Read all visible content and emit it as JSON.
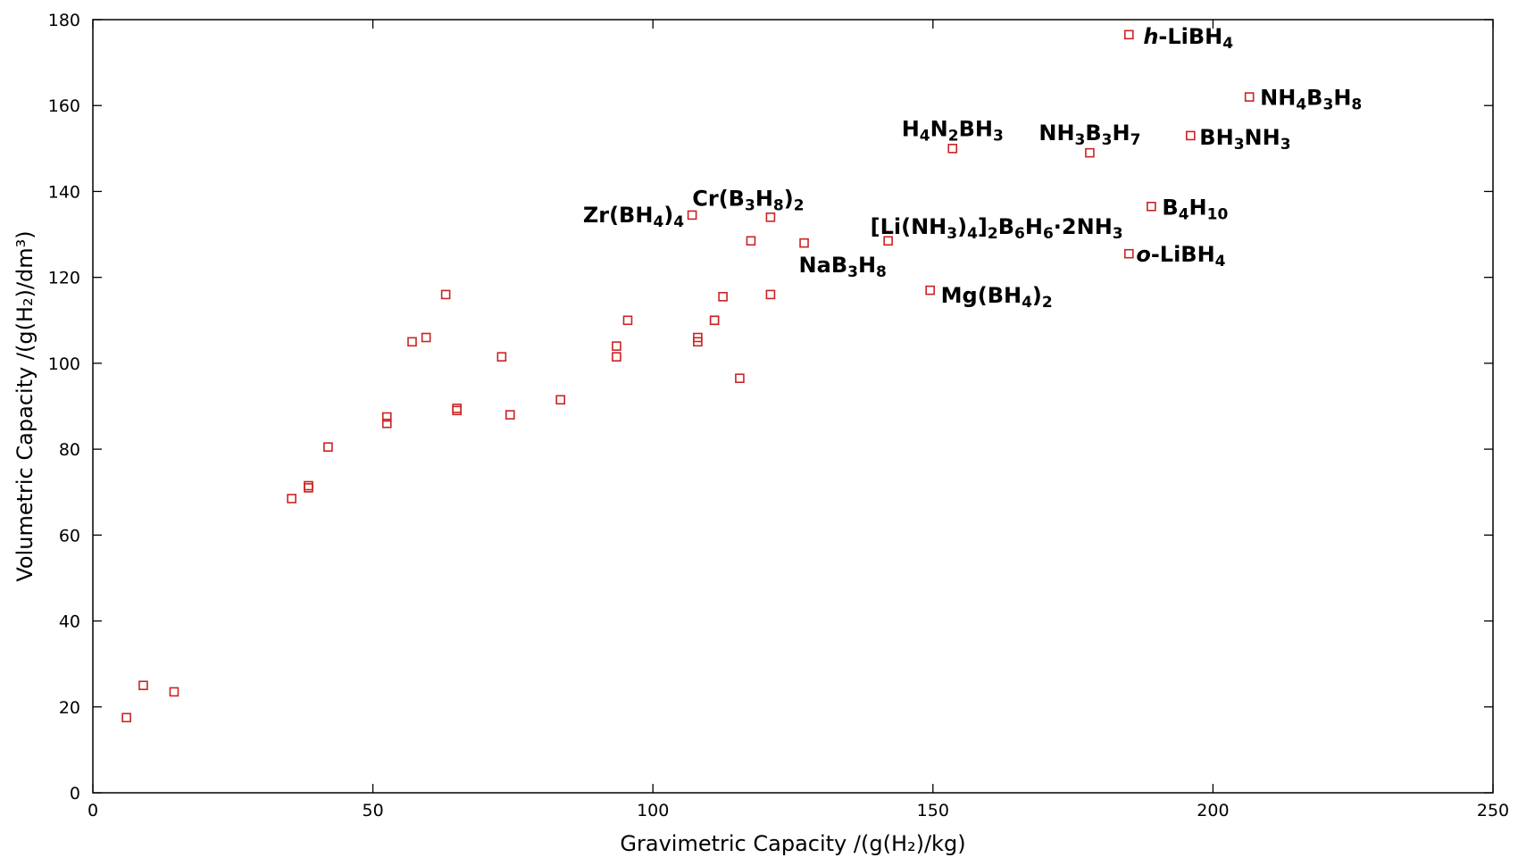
{
  "chart_data": {
    "type": "scatter",
    "xlabel": "Gravimetric Capacity /(g(H₂)/kg)",
    "ylabel": "Volumetric Capacity /(g(H₂)/dm³)",
    "xlim": [
      0,
      250
    ],
    "ylim": [
      0,
      180
    ],
    "x_ticks": [
      0,
      50,
      100,
      150,
      200,
      250
    ],
    "y_ticks": [
      0,
      20,
      40,
      60,
      80,
      100,
      120,
      140,
      160,
      180
    ],
    "grid": false,
    "marker": "open-square",
    "marker_color": "#cc2222",
    "points": [
      {
        "x": 6,
        "y": 17.5
      },
      {
        "x": 9,
        "y": 25
      },
      {
        "x": 14.5,
        "y": 23.5
      },
      {
        "x": 35.5,
        "y": 68.5
      },
      {
        "x": 38.5,
        "y": 71
      },
      {
        "x": 38.5,
        "y": 71.5
      },
      {
        "x": 42,
        "y": 80.5
      },
      {
        "x": 52.5,
        "y": 86
      },
      {
        "x": 52.5,
        "y": 87.5
      },
      {
        "x": 57,
        "y": 105
      },
      {
        "x": 59.5,
        "y": 106
      },
      {
        "x": 63,
        "y": 116
      },
      {
        "x": 65,
        "y": 89.5
      },
      {
        "x": 65,
        "y": 89
      },
      {
        "x": 73,
        "y": 101.5
      },
      {
        "x": 74.5,
        "y": 88
      },
      {
        "x": 83.5,
        "y": 91.5
      },
      {
        "x": 93.5,
        "y": 101.5
      },
      {
        "x": 93.5,
        "y": 104
      },
      {
        "x": 95.5,
        "y": 110
      },
      {
        "x": 107,
        "y": 134.5,
        "label": "Zr(BH4)4"
      },
      {
        "x": 108,
        "y": 106
      },
      {
        "x": 108,
        "y": 105
      },
      {
        "x": 111,
        "y": 110
      },
      {
        "x": 111,
        "y": 110
      },
      {
        "x": 112.5,
        "y": 115.5
      },
      {
        "x": 115.5,
        "y": 96.5
      },
      {
        "x": 117.5,
        "y": 128.5
      },
      {
        "x": 121,
        "y": 116
      },
      {
        "x": 121,
        "y": 134,
        "label": "Cr(B3H8)2"
      },
      {
        "x": 127,
        "y": 128,
        "label": "NaB3H8"
      },
      {
        "x": 142,
        "y": 128.5,
        "label": "[Li(NH3)4]2B6H6·2NH3"
      },
      {
        "x": 149.5,
        "y": 117,
        "label": "Mg(BH4)2"
      },
      {
        "x": 153.5,
        "y": 150,
        "label": "H4N2BH3"
      },
      {
        "x": 178,
        "y": 149,
        "label": "NH3B3H7"
      },
      {
        "x": 185,
        "y": 176.5,
        "label": "h-LiBH4"
      },
      {
        "x": 185,
        "y": 125.5,
        "label": "o-LiBH4"
      },
      {
        "x": 189,
        "y": 136.5,
        "label": "B4H10"
      },
      {
        "x": 196,
        "y": 153,
        "label": "BH3NH3"
      },
      {
        "x": 206.5,
        "y": 162,
        "label": "NH4B3H8"
      }
    ],
    "annotations": [
      {
        "label": "h-LiBH4",
        "segments": [
          {
            "t": "h",
            "i": true
          },
          {
            "t": "-LiBH"
          },
          {
            "t": "4",
            "s": true
          }
        ]
      },
      {
        "label": "NH4B3H8",
        "segments": [
          {
            "t": "NH"
          },
          {
            "t": "4",
            "s": true
          },
          {
            "t": "B"
          },
          {
            "t": "3",
            "s": true
          },
          {
            "t": "H"
          },
          {
            "t": "8",
            "s": true
          }
        ]
      },
      {
        "label": "H4N2BH3",
        "segments": [
          {
            "t": "H"
          },
          {
            "t": "4",
            "s": true
          },
          {
            "t": "N"
          },
          {
            "t": "2",
            "s": true
          },
          {
            "t": "BH"
          },
          {
            "t": "3",
            "s": true
          }
        ]
      },
      {
        "label": "NH3B3H7",
        "segments": [
          {
            "t": "NH"
          },
          {
            "t": "3",
            "s": true
          },
          {
            "t": "B"
          },
          {
            "t": "3",
            "s": true
          },
          {
            "t": "H"
          },
          {
            "t": "7",
            "s": true
          }
        ]
      },
      {
        "label": "BH3NH3",
        "segments": [
          {
            "t": "BH"
          },
          {
            "t": "3",
            "s": true
          },
          {
            "t": "NH"
          },
          {
            "t": "3",
            "s": true
          }
        ]
      },
      {
        "label": "Cr(B3H8)2",
        "segments": [
          {
            "t": "Cr(B"
          },
          {
            "t": "3",
            "s": true
          },
          {
            "t": "H"
          },
          {
            "t": "8",
            "s": true
          },
          {
            "t": ")"
          },
          {
            "t": "2",
            "s": true
          }
        ]
      },
      {
        "label": "Zr(BH4)4",
        "segments": [
          {
            "t": "Zr(BH"
          },
          {
            "t": "4",
            "s": true
          },
          {
            "t": ")"
          },
          {
            "t": "4",
            "s": true
          }
        ]
      },
      {
        "label": "B4H10",
        "segments": [
          {
            "t": "B"
          },
          {
            "t": "4",
            "s": true
          },
          {
            "t": "H"
          },
          {
            "t": "10",
            "s": true
          }
        ]
      },
      {
        "label": "[Li(NH3)4]2B6H6·2NH3",
        "segments": [
          {
            "t": "[Li(NH"
          },
          {
            "t": "3",
            "s": true
          },
          {
            "t": ")"
          },
          {
            "t": "4",
            "s": true
          },
          {
            "t": "]"
          },
          {
            "t": "2",
            "s": true
          },
          {
            "t": "B"
          },
          {
            "t": "6",
            "s": true
          },
          {
            "t": "H"
          },
          {
            "t": "6",
            "s": true
          },
          {
            "t": "·2NH"
          },
          {
            "t": "3",
            "s": true
          }
        ]
      },
      {
        "label": "o-LiBH4",
        "segments": [
          {
            "t": "o",
            "i": true
          },
          {
            "t": "-LiBH"
          },
          {
            "t": "4",
            "s": true
          }
        ]
      },
      {
        "label": "NaB3H8",
        "segments": [
          {
            "t": "NaB"
          },
          {
            "t": "3",
            "s": true
          },
          {
            "t": "H"
          },
          {
            "t": "8",
            "s": true
          }
        ]
      },
      {
        "label": "Mg(BH4)2",
        "segments": [
          {
            "t": "Mg(BH"
          },
          {
            "t": "4",
            "s": true
          },
          {
            "t": ")"
          },
          {
            "t": "2",
            "s": true
          }
        ]
      }
    ]
  }
}
